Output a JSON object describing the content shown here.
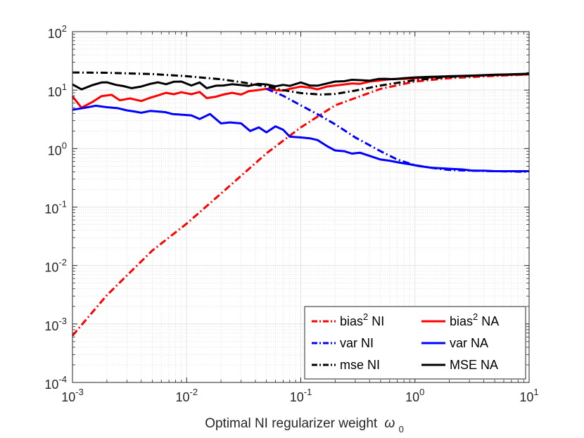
{
  "chart_data": {
    "type": "line",
    "title": "",
    "xlabel": "Optimal NI regularizer weight",
    "xlabel_symbol": "ω",
    "xlabel_subscript": "0",
    "ylabel": "",
    "xscale": "log",
    "yscale": "log",
    "xlim": [
      0.001,
      10
    ],
    "ylim": [
      0.0001,
      100
    ],
    "grid": true,
    "minor_grid": true,
    "legend_position": "bottom-right",
    "x_ticks": [
      {
        "base": "10",
        "exp": "-3",
        "value": 0.001
      },
      {
        "base": "10",
        "exp": "-2",
        "value": 0.01
      },
      {
        "base": "10",
        "exp": "-1",
        "value": 0.1
      },
      {
        "base": "10",
        "exp": "0",
        "value": 1
      },
      {
        "base": "10",
        "exp": "1",
        "value": 10
      }
    ],
    "y_ticks": [
      {
        "base": "10",
        "exp": "-4",
        "value": 0.0001
      },
      {
        "base": "10",
        "exp": "-3",
        "value": 0.001
      },
      {
        "base": "10",
        "exp": "-2",
        "value": 0.01
      },
      {
        "base": "10",
        "exp": "-1",
        "value": 0.1
      },
      {
        "base": "10",
        "exp": "0",
        "value": 1
      },
      {
        "base": "10",
        "exp": "1",
        "value": 10
      },
      {
        "base": "10",
        "exp": "2",
        "value": 100
      }
    ],
    "series": [
      {
        "name": "bias² NI",
        "label_main": "bias",
        "label_sup": "2",
        "label_tail": " NI",
        "color": "#ff0000",
        "dash": "dashdot",
        "x": [
          0.001,
          0.002,
          0.005,
          0.01,
          0.02,
          0.05,
          0.1,
          0.2,
          0.5,
          1,
          2,
          5,
          10
        ],
        "y": [
          0.00063,
          0.0031,
          0.018,
          0.052,
          0.17,
          0.83,
          2.3,
          5.5,
          10.5,
          14.0,
          16.0,
          17.5,
          18.5
        ]
      },
      {
        "name": "bias² NA",
        "label_main": "bias",
        "label_sup": "2",
        "label_tail": " NA",
        "color": "#ff0000",
        "dash": "solid",
        "x": [
          0.001,
          0.0012,
          0.0015,
          0.0018,
          0.0022,
          0.0026,
          0.0032,
          0.004,
          0.0048,
          0.0055,
          0.0066,
          0.0077,
          0.009,
          0.011,
          0.013,
          0.015,
          0.018,
          0.021,
          0.025,
          0.03,
          0.035,
          0.042,
          0.05,
          0.06,
          0.07,
          0.08,
          0.09,
          0.1,
          0.12,
          0.14,
          0.17,
          0.2,
          0.24,
          0.28,
          0.33,
          0.4,
          0.48,
          0.55,
          0.65,
          0.8,
          1.0,
          1.3,
          1.6,
          2.0,
          2.5,
          3.2,
          4.0,
          5.0,
          6.5,
          8.0,
          10
        ],
        "y": [
          7.8,
          5.0,
          6.3,
          7.9,
          8.3,
          6.7,
          7.2,
          6.5,
          7.4,
          8.0,
          9.0,
          8.5,
          9.2,
          8.5,
          9.3,
          7.3,
          7.7,
          8.4,
          9.0,
          8.4,
          9.6,
          10.0,
          10.5,
          10.0,
          9.8,
          10.5,
          11.0,
          11.5,
          11.0,
          10.3,
          11.5,
          12.0,
          12.5,
          13.0,
          12.8,
          14.0,
          14.5,
          15.0,
          15.5,
          15.5,
          16.0,
          16.3,
          16.8,
          17.0,
          17.3,
          17.5,
          17.8,
          18.0,
          18.2,
          18.4,
          18.5
        ]
      },
      {
        "name": "var NI",
        "label_main": "var NI",
        "label_sup": "",
        "label_tail": "",
        "color": "#0000ff",
        "dash": "dashdot",
        "x": [
          0.05,
          0.07,
          0.1,
          0.15,
          0.2,
          0.3,
          0.5,
          0.7,
          1.0,
          1.5,
          2,
          3,
          5,
          10
        ],
        "y": [
          10.5,
          8.0,
          5.5,
          3.6,
          2.6,
          1.55,
          0.9,
          0.65,
          0.52,
          0.46,
          0.43,
          0.42,
          0.41,
          0.4
        ]
      },
      {
        "name": "var NA",
        "label_main": "var NA",
        "label_sup": "",
        "label_tail": "",
        "color": "#0000ff",
        "dash": "solid",
        "x": [
          0.001,
          0.0013,
          0.0016,
          0.002,
          0.0025,
          0.003,
          0.0035,
          0.004,
          0.0048,
          0.0056,
          0.0065,
          0.0075,
          0.009,
          0.011,
          0.013,
          0.016,
          0.02,
          0.024,
          0.03,
          0.036,
          0.043,
          0.05,
          0.06,
          0.07,
          0.08,
          0.1,
          0.12,
          0.14,
          0.17,
          0.2,
          0.24,
          0.28,
          0.33,
          0.4,
          0.5,
          0.6,
          0.75,
          0.9,
          1.1,
          1.4,
          1.7,
          2.1,
          2.6,
          3.2,
          4.0,
          5.0,
          6.5,
          8.0,
          10
        ],
        "y": [
          4.6,
          5.0,
          5.4,
          5.1,
          4.9,
          4.5,
          4.3,
          4.1,
          4.4,
          4.3,
          4.2,
          3.9,
          3.8,
          3.7,
          3.2,
          3.9,
          2.7,
          2.8,
          2.7,
          2.0,
          2.3,
          1.9,
          2.4,
          2.1,
          1.6,
          1.55,
          1.5,
          1.4,
          1.1,
          0.93,
          0.9,
          0.82,
          0.85,
          0.75,
          0.65,
          0.62,
          0.57,
          0.54,
          0.5,
          0.47,
          0.46,
          0.45,
          0.44,
          0.42,
          0.42,
          0.41,
          0.41,
          0.41,
          0.41
        ]
      },
      {
        "name": "mse NI",
        "label_main": "mse NI",
        "label_sup": "",
        "label_tail": "",
        "color": "#000000",
        "dash": "dashdot",
        "x": [
          0.001,
          0.002,
          0.005,
          0.01,
          0.02,
          0.03,
          0.05,
          0.07,
          0.1,
          0.15,
          0.2,
          0.3,
          0.5,
          1.0,
          2,
          5,
          10
        ],
        "y": [
          20.0,
          19.8,
          18.8,
          17.3,
          15.3,
          13.7,
          11.5,
          10.0,
          8.9,
          8.4,
          8.6,
          9.8,
          12.0,
          14.8,
          16.8,
          18.2,
          18.9
        ]
      },
      {
        "name": "MSE NA",
        "label_main": "MSE NA",
        "label_sup": "",
        "label_tail": "",
        "color": "#000000",
        "dash": "solid",
        "x": [
          0.001,
          0.0012,
          0.0015,
          0.0018,
          0.002,
          0.0024,
          0.0028,
          0.0033,
          0.004,
          0.0048,
          0.0056,
          0.0066,
          0.0077,
          0.009,
          0.011,
          0.013,
          0.015,
          0.018,
          0.021,
          0.025,
          0.03,
          0.035,
          0.042,
          0.05,
          0.06,
          0.07,
          0.08,
          0.1,
          0.12,
          0.14,
          0.17,
          0.2,
          0.24,
          0.28,
          0.33,
          0.4,
          0.48,
          0.55,
          0.65,
          0.8,
          1.0,
          1.3,
          1.6,
          2.0,
          2.5,
          3.2,
          4.0,
          5.0,
          6.5,
          8.0,
          10
        ],
        "y": [
          12.5,
          10.3,
          12.2,
          13.5,
          13.6,
          12.3,
          11.7,
          10.8,
          11.5,
          12.8,
          13.6,
          12.6,
          13.9,
          14.0,
          12.0,
          13.5,
          10.8,
          11.9,
          12.0,
          12.6,
          12.2,
          11.8,
          12.8,
          12.5,
          11.6,
          12.3,
          11.8,
          13.5,
          12.0,
          11.9,
          13.0,
          14.0,
          14.2,
          15.0,
          14.8,
          14.5,
          15.5,
          15.6,
          15.4,
          16.0,
          16.5,
          16.8,
          17.0,
          17.3,
          17.5,
          17.7,
          18.0,
          18.3,
          18.5,
          18.8,
          19.0
        ]
      }
    ]
  }
}
